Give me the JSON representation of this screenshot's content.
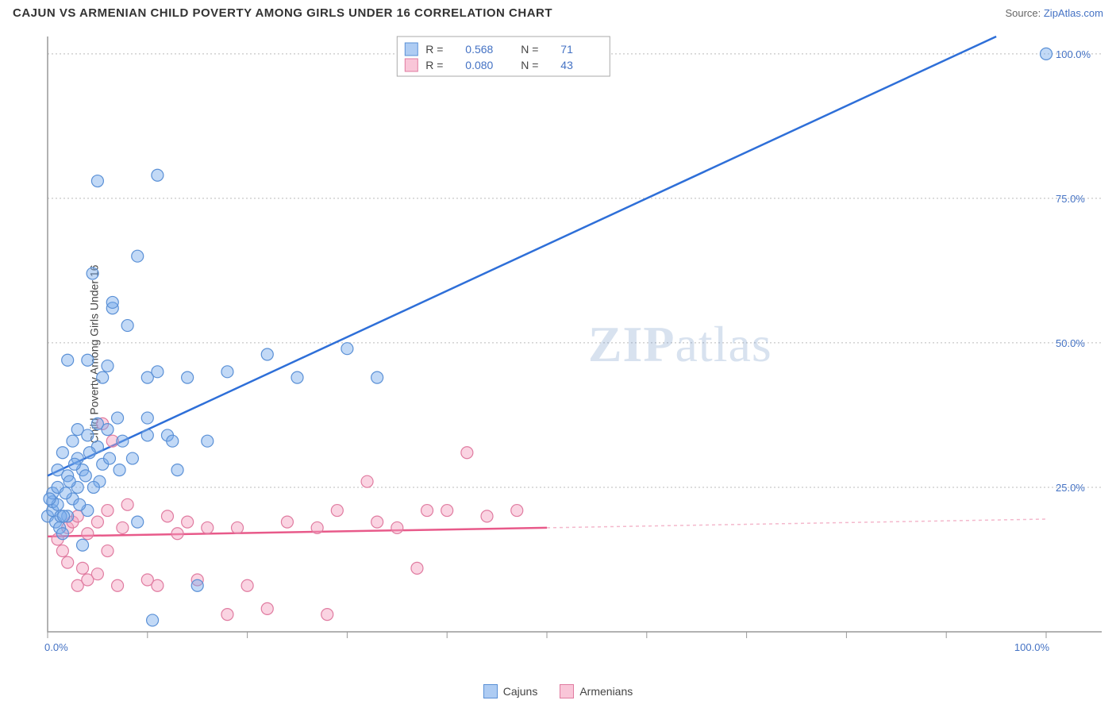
{
  "title": "CAJUN VS ARMENIAN CHILD POVERTY AMONG GIRLS UNDER 16 CORRELATION CHART",
  "source_prefix": "Source: ",
  "source_link": "ZipAtlas.com",
  "ylabel": "Child Poverty Among Girls Under 16",
  "watermark_bold": "ZIP",
  "watermark_rest": "atlas",
  "chart": {
    "type": "scatter",
    "xlim": [
      0,
      100
    ],
    "ylim": [
      0,
      103
    ],
    "y_ticks": [
      25,
      50,
      75,
      100
    ],
    "y_tick_labels": [
      "25.0%",
      "50.0%",
      "75.0%",
      "100.0%"
    ],
    "x_tick_count": 11,
    "x_end_labels": [
      "0.0%",
      "100.0%"
    ],
    "grid_color": "#bbbbbb",
    "axis_color": "#999999",
    "background": "#ffffff",
    "marker_radius": 7.5,
    "series": [
      {
        "name": "Cajuns",
        "color_fill": "rgba(120,170,235,0.45)",
        "color_stroke": "#5a90d6",
        "trend_color": "#2e6fd8",
        "R": "0.568",
        "N": "71",
        "trend": {
          "x0": 0,
          "y0": 27,
          "x1": 95,
          "y1": 103
        },
        "points": [
          [
            0,
            20
          ],
          [
            0.5,
            21
          ],
          [
            0.5,
            22.5
          ],
          [
            0.5,
            24
          ],
          [
            0.8,
            19
          ],
          [
            1,
            28
          ],
          [
            1,
            22
          ],
          [
            1,
            25
          ],
          [
            1.2,
            18
          ],
          [
            1.5,
            31
          ],
          [
            1.5,
            17
          ],
          [
            2,
            27
          ],
          [
            2,
            20
          ],
          [
            2,
            47
          ],
          [
            2.5,
            23
          ],
          [
            2.5,
            33
          ],
          [
            3,
            25
          ],
          [
            3,
            30
          ],
          [
            3,
            35
          ],
          [
            3.5,
            15
          ],
          [
            3.5,
            28
          ],
          [
            4,
            21
          ],
          [
            4,
            34
          ],
          [
            4,
            47
          ],
          [
            4.5,
            62
          ],
          [
            5,
            32
          ],
          [
            5,
            36
          ],
          [
            5,
            78
          ],
          [
            5.5,
            29
          ],
          [
            5.5,
            44
          ],
          [
            6,
            35
          ],
          [
            6,
            46
          ],
          [
            6.5,
            56
          ],
          [
            6.5,
            57
          ],
          [
            7,
            37
          ],
          [
            7.5,
            33
          ],
          [
            8,
            53
          ],
          [
            8.5,
            30
          ],
          [
            9,
            65
          ],
          [
            9,
            19
          ],
          [
            10,
            34
          ],
          [
            10,
            37
          ],
          [
            10,
            44
          ],
          [
            10.5,
            2
          ],
          [
            11,
            45
          ],
          [
            11,
            79
          ],
          [
            12,
            34
          ],
          [
            12.5,
            33
          ],
          [
            13,
            28
          ],
          [
            14,
            44
          ],
          [
            15,
            8
          ],
          [
            16,
            33
          ],
          [
            18,
            45
          ],
          [
            22,
            48
          ],
          [
            25,
            44
          ],
          [
            30,
            49
          ],
          [
            33,
            44
          ],
          [
            100,
            100
          ],
          [
            0.2,
            23
          ],
          [
            1.8,
            24
          ],
          [
            2.2,
            26
          ],
          [
            3.2,
            22
          ],
          [
            4.2,
            31
          ],
          [
            5.2,
            26
          ],
          [
            6.2,
            30
          ],
          [
            1.3,
            20
          ],
          [
            2.7,
            29
          ],
          [
            3.8,
            27
          ],
          [
            4.6,
            25
          ],
          [
            7.2,
            28
          ],
          [
            1.6,
            20
          ]
        ]
      },
      {
        "name": "Armenians",
        "color_fill": "rgba(245,160,190,0.45)",
        "color_stroke": "#e07ba0",
        "trend_color": "#e85a8a",
        "trend_dash_color": "#f4b8cc",
        "R": "0.080",
        "N": "43",
        "trend": {
          "x0": 0,
          "y0": 16.5,
          "x1_solid": 50,
          "y1_solid": 18.0,
          "x1": 100,
          "y1": 19.5
        },
        "points": [
          [
            1,
            16
          ],
          [
            1.5,
            14
          ],
          [
            2,
            12
          ],
          [
            2,
            18
          ],
          [
            2.5,
            19
          ],
          [
            3,
            8
          ],
          [
            3,
            20
          ],
          [
            3.5,
            11
          ],
          [
            4,
            9
          ],
          [
            4,
            17
          ],
          [
            5,
            10
          ],
          [
            5,
            19
          ],
          [
            5.5,
            36
          ],
          [
            6,
            21
          ],
          [
            6,
            14
          ],
          [
            6.5,
            33
          ],
          [
            7,
            8
          ],
          [
            7.5,
            18
          ],
          [
            8,
            22
          ],
          [
            10,
            9
          ],
          [
            11,
            8
          ],
          [
            12,
            20
          ],
          [
            13,
            17
          ],
          [
            14,
            19
          ],
          [
            15,
            9
          ],
          [
            16,
            18
          ],
          [
            18,
            3
          ],
          [
            19,
            18
          ],
          [
            20,
            8
          ],
          [
            22,
            4
          ],
          [
            24,
            19
          ],
          [
            27,
            18
          ],
          [
            28,
            3
          ],
          [
            29,
            21
          ],
          [
            32,
            26
          ],
          [
            33,
            19
          ],
          [
            35,
            18
          ],
          [
            37,
            11
          ],
          [
            38,
            21
          ],
          [
            40,
            21
          ],
          [
            42,
            31
          ],
          [
            44,
            20
          ],
          [
            47,
            21
          ]
        ]
      }
    ]
  },
  "stats_legend": {
    "r_label": "R  =",
    "n_label": "N  ="
  },
  "bottom_legend": {
    "series1": "Cajuns",
    "series2": "Armenians"
  }
}
